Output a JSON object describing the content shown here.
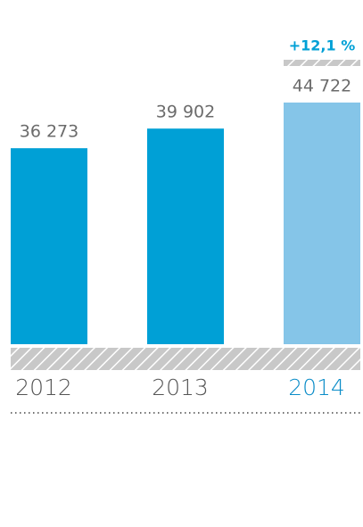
{
  "chart_data": {
    "type": "bar",
    "categories": [
      "2012",
      "2013",
      "2014"
    ],
    "values": [
      36273,
      39902,
      44722
    ],
    "value_labels": [
      "36 273",
      "39 902",
      "44 722"
    ],
    "colors": [
      "#00a0d6",
      "#00a0d6",
      "#85c5e8"
    ],
    "category_label_colors": [
      "#555555",
      "#555555",
      "#0a8cc8"
    ],
    "annotation": "+12,1 %"
  }
}
